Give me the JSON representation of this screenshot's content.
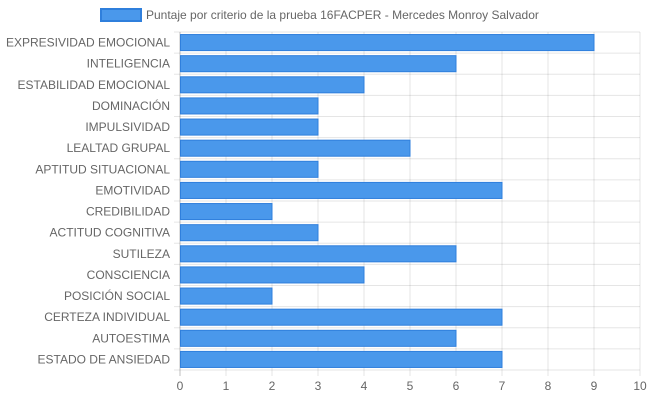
{
  "chart_data": {
    "type": "bar",
    "orientation": "horizontal",
    "categories": [
      "EXPRESIVIDAD EMOCIONAL",
      "INTELIGENCIA",
      "ESTABILIDAD EMOCIONAL",
      "DOMINACIÓN",
      "IMPULSIVIDAD",
      "LEALTAD GRUPAL",
      "APTITUD SITUACIONAL",
      "EMOTIVIDAD",
      "CREDIBILIDAD",
      "ACTITUD COGNITIVA",
      "SUTILEZA",
      "CONSCIENCIA",
      "POSICIÓN SOCIAL",
      "CERTEZA INDIVIDUAL",
      "AUTOESTIMA",
      "ESTADO DE ANSIEDAD"
    ],
    "series": [
      {
        "name": "Puntaje por criterio de la prueba 16FACPER - Mercedes Monroy Salvador",
        "values": [
          9,
          6,
          4,
          3,
          3,
          5,
          3,
          7,
          2,
          3,
          6,
          4,
          2,
          7,
          6,
          7
        ],
        "color": "#4A98EB",
        "border_color": "#2F7FDC"
      }
    ],
    "xlim": [
      0,
      10
    ],
    "x_ticks": [
      "0",
      "1",
      "2",
      "3",
      "4",
      "5",
      "6",
      "7",
      "8",
      "9",
      "10"
    ],
    "grid": true,
    "legend_position": "top-center"
  }
}
